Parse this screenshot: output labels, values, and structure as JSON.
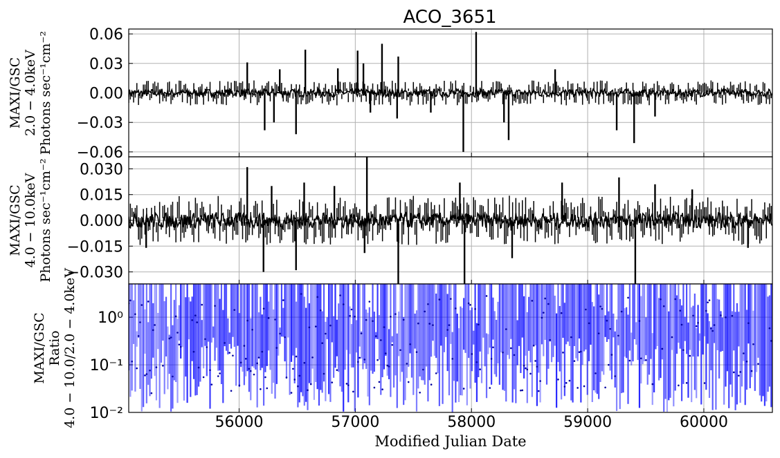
{
  "chart_data": {
    "title": "ACO_3651",
    "xlabel": "Modified Julian Date",
    "xlim": [
      55050,
      60590
    ],
    "x_ticks": [
      56000,
      57000,
      58000,
      59000,
      60000
    ],
    "x_tick_labels": [
      "56000",
      "57000",
      "58000",
      "59000",
      "60000"
    ],
    "grid": true,
    "panels": [
      {
        "type": "line",
        "ylabel": [
          "MAXI/GSC",
          "2.0 − 4.0keV",
          "Photons sec⁻¹cm⁻²"
        ],
        "ylim": [
          -0.065,
          0.065
        ],
        "y_ticks": [
          0.06,
          0.03,
          0.0,
          -0.03,
          -0.06
        ],
        "y_tick_labels": [
          "0.06",
          "0.03",
          "0.00",
          "−0.03",
          "−0.06"
        ],
        "color": "#000000",
        "noise_amplitude": 0.004,
        "spikes": [
          {
            "x": 56070,
            "y": 0.031
          },
          {
            "x": 56220,
            "y": -0.038
          },
          {
            "x": 56300,
            "y": -0.03
          },
          {
            "x": 56350,
            "y": 0.024
          },
          {
            "x": 56490,
            "y": -0.042
          },
          {
            "x": 56570,
            "y": 0.044
          },
          {
            "x": 56850,
            "y": 0.025
          },
          {
            "x": 57020,
            "y": 0.043
          },
          {
            "x": 57070,
            "y": 0.03
          },
          {
            "x": 57130,
            "y": -0.02
          },
          {
            "x": 57230,
            "y": 0.05
          },
          {
            "x": 57360,
            "y": -0.026
          },
          {
            "x": 57370,
            "y": 0.037
          },
          {
            "x": 57650,
            "y": -0.02
          },
          {
            "x": 57930,
            "y": -0.06
          },
          {
            "x": 58040,
            "y": 0.062
          },
          {
            "x": 58280,
            "y": -0.03
          },
          {
            "x": 58320,
            "y": -0.048
          },
          {
            "x": 58720,
            "y": 0.024
          },
          {
            "x": 59250,
            "y": -0.038
          },
          {
            "x": 59400,
            "y": -0.051
          },
          {
            "x": 59580,
            "y": -0.024
          }
        ]
      },
      {
        "type": "line",
        "ylabel": [
          "MAXI/GSC",
          "4.0 − 10.0keV",
          "Photons sec⁻¹cm⁻²"
        ],
        "ylim": [
          -0.037,
          0.037
        ],
        "y_ticks": [
          0.03,
          0.015,
          0.0,
          -0.015,
          -0.03
        ],
        "y_tick_labels": [
          "0.030",
          "0.015",
          "0.000",
          "−0.015",
          "−0.030"
        ],
        "color": "#000000",
        "noise_amplitude": 0.0045,
        "spikes": [
          {
            "x": 55200,
            "y": -0.016
          },
          {
            "x": 56070,
            "y": 0.031
          },
          {
            "x": 56210,
            "y": -0.03
          },
          {
            "x": 56280,
            "y": 0.02
          },
          {
            "x": 56490,
            "y": -0.029
          },
          {
            "x": 56560,
            "y": 0.022
          },
          {
            "x": 56820,
            "y": 0.02
          },
          {
            "x": 57080,
            "y": -0.019
          },
          {
            "x": 57100,
            "y": 0.037
          },
          {
            "x": 57370,
            "y": -0.037
          },
          {
            "x": 57900,
            "y": 0.022
          },
          {
            "x": 57940,
            "y": -0.037
          },
          {
            "x": 58350,
            "y": -0.022
          },
          {
            "x": 58780,
            "y": 0.022
          },
          {
            "x": 59270,
            "y": 0.025
          },
          {
            "x": 59410,
            "y": -0.037
          },
          {
            "x": 59580,
            "y": 0.021
          },
          {
            "x": 59900,
            "y": 0.018
          },
          {
            "x": 60380,
            "y": -0.016
          }
        ]
      },
      {
        "type": "line",
        "scale": "log",
        "ylabel": [
          "MAXI/GSC",
          "Ratio",
          "4.0 − 10.0/2.0 − 4.0keV"
        ],
        "ylim": [
          0.01,
          5
        ],
        "y_ticks": [
          1,
          0.1,
          0.01
        ],
        "y_tick_labels": [
          "10⁰",
          "10⁻¹",
          "10⁻²"
        ],
        "color": "#0000ff"
      }
    ]
  }
}
